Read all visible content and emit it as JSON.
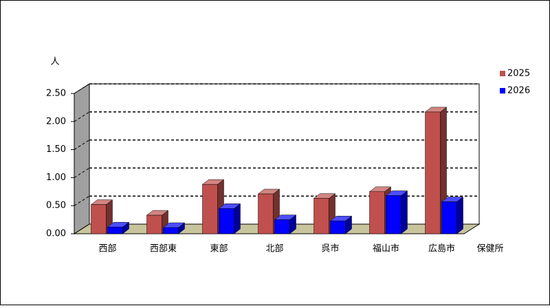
{
  "chart_data": {
    "type": "bar3d",
    "y_label": "人",
    "x_label": "保健所",
    "categories": [
      "西部",
      "西部東",
      "東部",
      "北部",
      "呉市",
      "福山市",
      "広島市"
    ],
    "series": [
      {
        "name": "2025",
        "color": "#c0504d",
        "values": [
          0.52,
          0.33,
          0.88,
          0.71,
          0.63,
          0.75,
          2.17
        ]
      },
      {
        "name": "2026",
        "color": "#0000ff",
        "values": [
          0.12,
          0.11,
          0.45,
          0.25,
          0.23,
          0.68,
          0.57
        ]
      }
    ],
    "ylim": [
      0,
      2.5
    ],
    "yticks": [
      {
        "value": 0,
        "label": "0.00"
      },
      {
        "value": 0.5,
        "label": "0.50"
      },
      {
        "value": 1,
        "label": "1.00"
      },
      {
        "value": 1.5,
        "label": "1.50"
      },
      {
        "value": 2,
        "label": "2.00"
      },
      {
        "value": 2.5,
        "label": "2.50"
      }
    ],
    "grid": true,
    "legend": "right"
  }
}
